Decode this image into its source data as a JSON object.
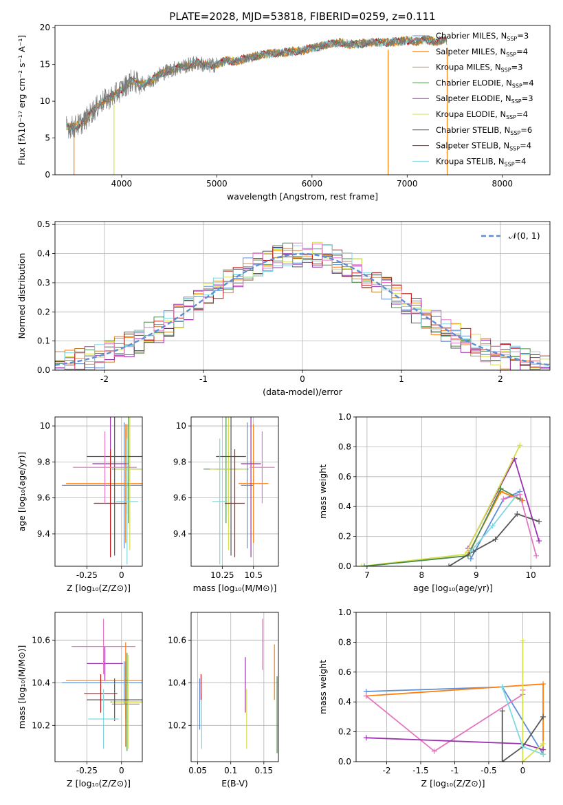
{
  "figure_title": "PLATE=2028, MJD=53818, FIBERID=0259, z=0.111",
  "colors": {
    "Chabrier MILES": "#5b8ed6",
    "Salpeter MILES": "#ff7f0e",
    "Kroupa MILES": "#c47f2a",
    "Chabrier ELODIE": "#4b8b4b",
    "Salpeter ELODIE": "#9b30b0",
    "Kroupa ELODIE": "#d6e04a",
    "Chabrier STELIB": "#555555",
    "Salpeter STELIB": "#c01818",
    "Kroupa STELIB": "#7fd8e0",
    "pink": "#e377c2",
    "normal": "#5b8ed6"
  },
  "chart_data": [
    {
      "id": "spectrum",
      "type": "line",
      "title": "PLATE=2028, MJD=53818, FIBERID=0259, z=0.111",
      "xlabel": "wavelength [Angstrom, rest frame]",
      "ylabel": "Flux [fλ10⁻¹⁷ erg cm⁻² s⁻¹ A⁻¹]",
      "xlim": [
        3300,
        8500
      ],
      "ylim": [
        0,
        20.3
      ],
      "xticks": [
        4000,
        5000,
        6000,
        7000,
        8000
      ],
      "yticks": [
        0,
        5,
        10,
        15,
        20
      ],
      "legend_position": "right",
      "legend": [
        "Chabrier MILES, N_SSP=3",
        "Salpeter MILES, N_SSP=4",
        "Kroupa MILES, N_SSP=3",
        "Chabrier ELODIE, N_SSP=4",
        "Salpeter ELODIE, N_SSP=3",
        "Kroupa ELODIE, N_SSP=4",
        "Chabrier STELIB, N_SSP=6",
        "Salpeter STELIB, N_SSP=4",
        "Kroupa STELIB, N_SSP=4"
      ],
      "data_continuum": {
        "x": [
          3420,
          3500,
          3600,
          3700,
          3800,
          3900,
          4000,
          4100,
          4200,
          4300,
          4400,
          4500,
          4600,
          4700,
          4800,
          4900,
          5000,
          5100,
          5200,
          5300,
          5400,
          5500,
          5600,
          5700,
          5800,
          5900,
          6000,
          6100,
          6200,
          6300,
          6400,
          6500,
          6600,
          6700,
          6800,
          6900,
          7000,
          7100,
          7200,
          7300,
          7400
        ],
        "y": [
          6.5,
          6.5,
          7.2,
          8.7,
          10.0,
          10.6,
          11.6,
          12.8,
          12.3,
          12.7,
          13.7,
          14.2,
          14.6,
          14.9,
          15.2,
          14.8,
          15.0,
          15.5,
          15.4,
          15.8,
          16.1,
          16.4,
          16.5,
          16.6,
          16.8,
          16.9,
          17.2,
          17.5,
          17.8,
          18.0,
          17.7,
          17.8,
          18.0,
          18.0,
          18.0,
          18.1,
          18.3,
          18.1,
          18.4,
          18.1,
          18.3
        ]
      },
      "drop_lines_x": [
        3500,
        3920,
        6800,
        7420
      ]
    },
    {
      "id": "residuals",
      "type": "line",
      "xlabel": "(data-model)/error",
      "ylabel": "Normed distribution",
      "xlim": [
        -2.5,
        2.5
      ],
      "ylim": [
        0,
        0.51
      ],
      "xticks": [
        -2,
        -1,
        0,
        1,
        2
      ],
      "yticks": [
        0.0,
        0.1,
        0.2,
        0.3,
        0.4,
        0.5
      ],
      "legend": [
        "𝒩(0, 1)"
      ],
      "legend_position": "top-right",
      "normal_mean": 0,
      "normal_sigma": 1,
      "histogram_bin_width": 0.1
    },
    {
      "id": "age-vs-Z",
      "type": "scatter",
      "xlabel": "Z [log₁₀(Z/Z⊙)]",
      "ylabel": "age  [log₁₀(age/yr)]",
      "xlim": [
        -0.48,
        0.15
      ],
      "ylim": [
        9.22,
        10.05
      ],
      "xticks": [
        -0.25,
        0.0
      ],
      "yticks": [
        9.4,
        9.6,
        9.8,
        10.0
      ],
      "points": [
        {
          "model": "Chabrier MILES",
          "x": 0.02,
          "y": 9.67,
          "xerr": 0.45,
          "yerr": 0.35
        },
        {
          "model": "Salpeter MILES",
          "x": 0.03,
          "y": 9.68,
          "xerr": 0.43,
          "yerr": 0.33
        },
        {
          "model": "Kroupa MILES",
          "x": 0.04,
          "y": 9.76,
          "xerr": 0.1,
          "yerr": 0.25
        },
        {
          "model": "Chabrier ELODIE",
          "x": 0.05,
          "y": 9.76,
          "xerr": 0.12,
          "yerr": 0.3
        },
        {
          "model": "Salpeter ELODIE",
          "x": -0.08,
          "y": 9.79,
          "xerr": 0.13,
          "yerr": 0.52
        },
        {
          "model": "Kroupa ELODIE",
          "x": 0.06,
          "y": 9.76,
          "xerr": 0.12,
          "yerr": 0.45
        },
        {
          "model": "Chabrier STELIB",
          "x": -0.05,
          "y": 9.83,
          "xerr": 0.2,
          "yerr": 0.55
        },
        {
          "model": "Salpeter STELIB",
          "x": -0.08,
          "y": 9.57,
          "xerr": 0.12,
          "yerr": 0.3
        },
        {
          "model": "Kroupa STELIB",
          "x": 0.04,
          "y": 9.58,
          "xerr": 0.08,
          "yerr": 0.35
        },
        {
          "model": "pink",
          "x": -0.12,
          "y": 9.77,
          "xerr": 0.23,
          "yerr": 0.2
        }
      ]
    },
    {
      "id": "age-vs-mass",
      "type": "scatter",
      "xlabel": "mass [log₁₀(M/M⊙)]",
      "ylabel": "",
      "xlim": [
        10.0,
        10.7
      ],
      "ylim": [
        9.22,
        10.05
      ],
      "xticks": [
        10.25,
        10.5
      ],
      "yticks": [
        9.4,
        9.6,
        9.8,
        10.0
      ],
      "points": [
        {
          "model": "Chabrier MILES",
          "x": 10.45,
          "y": 9.67,
          "xerr": 0.05,
          "yerr": 0.35
        },
        {
          "model": "Salpeter MILES",
          "x": 10.5,
          "y": 9.68,
          "xerr": 0.12,
          "yerr": 0.33
        },
        {
          "model": "Kroupa MILES",
          "x": 10.3,
          "y": 9.76,
          "xerr": 0.1,
          "yerr": 0.25
        },
        {
          "model": "Chabrier ELODIE",
          "x": 10.28,
          "y": 9.76,
          "xerr": 0.18,
          "yerr": 0.3
        },
        {
          "model": "Salpeter ELODIE",
          "x": 10.48,
          "y": 9.79,
          "xerr": 0.08,
          "yerr": 0.52
        },
        {
          "model": "Kroupa ELODIE",
          "x": 10.3,
          "y": 9.76,
          "xerr": 0.15,
          "yerr": 0.45
        },
        {
          "model": "Chabrier STELIB",
          "x": 10.32,
          "y": 9.83,
          "xerr": 0.12,
          "yerr": 0.55
        },
        {
          "model": "Salpeter STELIB",
          "x": 10.35,
          "y": 9.57,
          "xerr": 0.08,
          "yerr": 0.3
        },
        {
          "model": "Kroupa STELIB",
          "x": 10.23,
          "y": 9.58,
          "xerr": 0.06,
          "yerr": 0.35
        },
        {
          "model": "pink",
          "x": 10.57,
          "y": 9.77,
          "xerr": 0.1,
          "yerr": 0.2
        }
      ]
    },
    {
      "id": "weight-vs-age",
      "type": "line",
      "xlabel": "age  [log₁₀(age/yr)]",
      "ylabel": "mass weight",
      "xlim": [
        6.8,
        10.35
      ],
      "ylim": [
        0,
        1.0
      ],
      "xticks": [
        7,
        8,
        9,
        10
      ],
      "yticks": [
        0.0,
        0.2,
        0.4,
        0.6,
        0.8,
        1.0
      ],
      "series": [
        {
          "model": "Chabrier MILES",
          "x": [
            8.9,
            9.5,
            9.8
          ],
          "y": [
            0.05,
            0.45,
            0.5
          ]
        },
        {
          "model": "Salpeter MILES",
          "x": [
            8.85,
            9.45,
            9.85
          ],
          "y": [
            0.08,
            0.5,
            0.44
          ]
        },
        {
          "model": "Salpeter ELODIE",
          "x": [
            8.85,
            9.7,
            10.15
          ],
          "y": [
            0.12,
            0.72,
            0.17
          ]
        },
        {
          "model": "Kroupa ELODIE",
          "x": [
            6.9,
            8.8,
            9.8
          ],
          "y": [
            0.0,
            0.08,
            0.81
          ]
        },
        {
          "model": "Chabrier ELODIE",
          "x": [
            6.95,
            8.85,
            9.45,
            9.8
          ],
          "y": [
            0.0,
            0.07,
            0.52,
            0.45
          ]
        },
        {
          "model": "Chabrier STELIB",
          "x": [
            8.5,
            8.95,
            9.35,
            9.75,
            10.15
          ],
          "y": [
            0.0,
            0.1,
            0.18,
            0.35,
            0.3
          ]
        },
        {
          "model": "Kroupa STELIB",
          "x": [
            8.9,
            9.3,
            9.75
          ],
          "y": [
            0.1,
            0.27,
            0.48
          ]
        },
        {
          "model": "pink",
          "x": [
            9.5,
            9.8,
            10.1
          ],
          "y": [
            0.45,
            0.48,
            0.07
          ]
        }
      ]
    },
    {
      "id": "mass-vs-Z",
      "type": "scatter",
      "xlabel": "Z [log₁₀(Z/Z⊙)]",
      "ylabel": "mass [log₁₀(M/M⊙)]",
      "xlim": [
        -0.48,
        0.15
      ],
      "ylim": [
        10.03,
        10.73
      ],
      "xticks": [
        -0.25,
        0.0
      ],
      "yticks": [
        10.2,
        10.4,
        10.6
      ],
      "points": [
        {
          "model": "Chabrier MILES",
          "x": 0.02,
          "y": 10.4,
          "xerr": 0.45,
          "yerr": 0.1
        },
        {
          "model": "Salpeter MILES",
          "x": 0.03,
          "y": 10.41,
          "xerr": 0.43,
          "yerr": 0.18
        },
        {
          "model": "Kroupa MILES",
          "x": 0.03,
          "y": 10.3,
          "xerr": 0.1,
          "yerr": 0.2
        },
        {
          "model": "Chabrier ELODIE",
          "x": 0.04,
          "y": 10.31,
          "xerr": 0.12,
          "yerr": 0.23
        },
        {
          "model": "Salpeter ELODIE",
          "x": -0.12,
          "y": 10.49,
          "xerr": 0.13,
          "yerr": 0.08
        },
        {
          "model": "Kroupa ELODIE",
          "x": 0.05,
          "y": 10.31,
          "xerr": 0.12,
          "yerr": 0.22
        },
        {
          "model": "Chabrier STELIB",
          "x": -0.05,
          "y": 10.32,
          "xerr": 0.2,
          "yerr": 0.1
        },
        {
          "model": "Salpeter STELIB",
          "x": -0.15,
          "y": 10.35,
          "xerr": 0.12,
          "yerr": 0.09
        },
        {
          "model": "Kroupa STELIB",
          "x": -0.13,
          "y": 10.23,
          "xerr": 0.11,
          "yerr": 0.14
        },
        {
          "model": "pink",
          "x": -0.13,
          "y": 10.57,
          "xerr": 0.23,
          "yerr": 0.13
        }
      ]
    },
    {
      "id": "mass-vs-EBV",
      "type": "scatter",
      "xlabel": "E(B-V)",
      "ylabel": "",
      "xlim": [
        0.04,
        0.172
      ],
      "ylim": [
        10.03,
        10.73
      ],
      "xticks": [
        0.05,
        0.1,
        0.15
      ],
      "yticks": [
        10.2,
        10.4,
        10.6
      ],
      "points": [
        {
          "model": "Chabrier MILES",
          "x": 0.053,
          "y": 10.3,
          "yerr": 0.12
        },
        {
          "model": "Salpeter MILES",
          "x": 0.166,
          "y": 10.45,
          "yerr": 0.13
        },
        {
          "model": "Salpeter STELIB",
          "x": 0.055,
          "y": 10.38,
          "yerr": 0.06
        },
        {
          "model": "Kroupa STELIB",
          "x": 0.056,
          "y": 10.22,
          "yerr": 0.13
        },
        {
          "model": "Salpeter ELODIE",
          "x": 0.122,
          "y": 10.39,
          "yerr": 0.13
        },
        {
          "model": "Kroupa ELODIE",
          "x": 0.124,
          "y": 10.23,
          "yerr": 0.14
        },
        {
          "model": "pink",
          "x": 0.148,
          "y": 10.58,
          "yerr": 0.12
        },
        {
          "model": "Chabrier ELODIE",
          "x": 0.17,
          "y": 10.25,
          "yerr": 0.18
        }
      ]
    },
    {
      "id": "weight-vs-Z",
      "type": "line",
      "xlabel": "Z [log₁₀(Z/Z⊙)]",
      "ylabel": "mass weight",
      "xlim": [
        -2.45,
        0.4
      ],
      "ylim": [
        0,
        1.0
      ],
      "xticks": [
        -2.0,
        -1.5,
        -1.0,
        -0.5,
        0.0
      ],
      "yticks": [
        0.0,
        0.2,
        0.4,
        0.6,
        0.8,
        1.0
      ],
      "series": [
        {
          "model": "Chabrier MILES",
          "x": [
            -2.3,
            -0.3,
            0.3
          ],
          "y": [
            0.47,
            0.5,
            0.05
          ]
        },
        {
          "model": "Salpeter MILES",
          "x": [
            -2.3,
            0.3,
            0.3
          ],
          "y": [
            0.44,
            0.52,
            0.05
          ]
        },
        {
          "model": "pink",
          "x": [
            -2.3,
            -1.3,
            0.0,
            0.0
          ],
          "y": [
            0.44,
            0.07,
            0.45,
            0.48
          ]
        },
        {
          "model": "Salpeter ELODIE",
          "x": [
            -2.3,
            0.0,
            0.3
          ],
          "y": [
            0.16,
            0.12,
            0.08
          ]
        },
        {
          "model": "Kroupa ELODIE",
          "x": [
            0.0,
            0.0,
            0.3
          ],
          "y": [
            0.81,
            0.0,
            0.12
          ]
        },
        {
          "model": "Chabrier STELIB",
          "x": [
            -0.3,
            -0.3,
            0.0,
            0.3
          ],
          "y": [
            0.34,
            0.0,
            0.1,
            0.3
          ]
        },
        {
          "model": "Kroupa STELIB",
          "x": [
            -0.3,
            0.0,
            0.3
          ],
          "y": [
            0.5,
            0.1,
            0.05
          ]
        }
      ]
    }
  ]
}
